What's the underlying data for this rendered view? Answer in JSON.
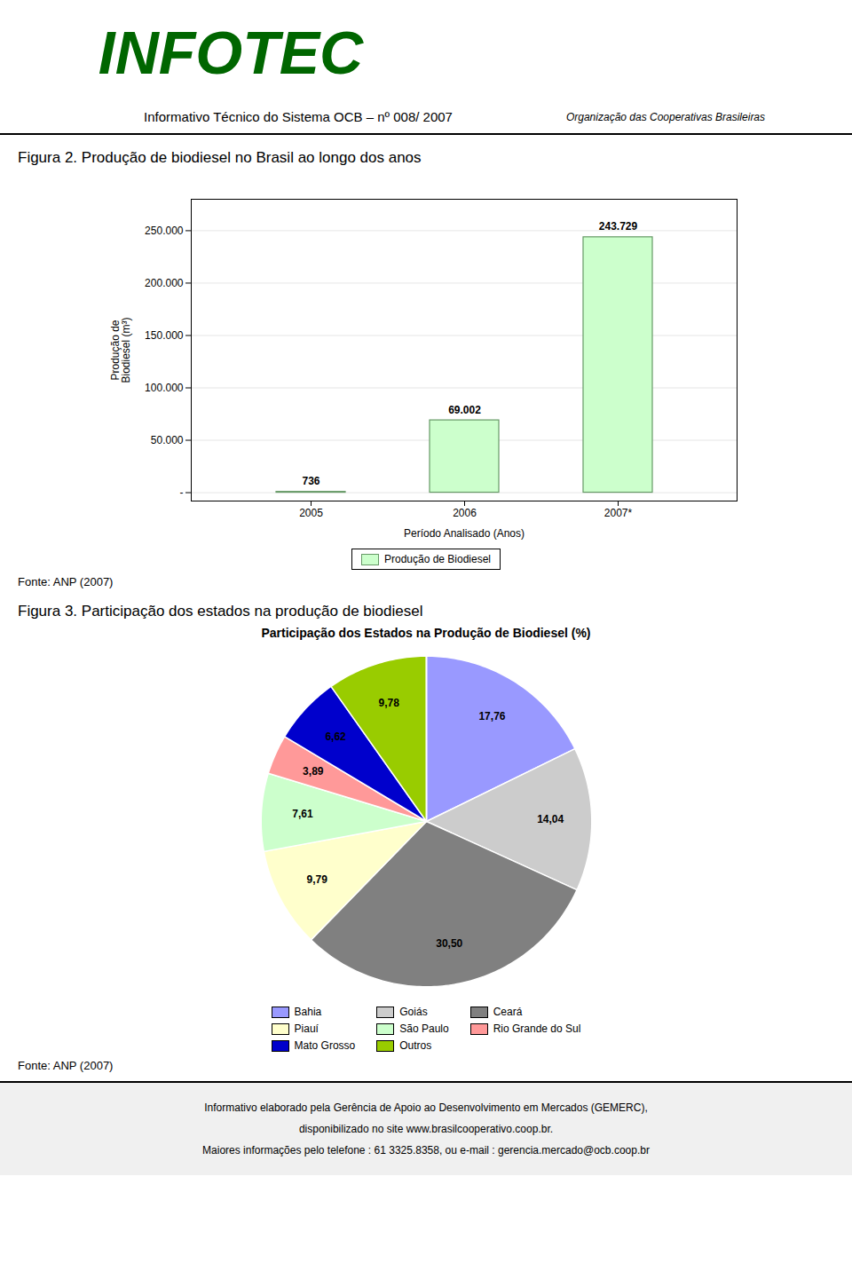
{
  "header": [
    "INFOTEC",
    "Informativo Técnico do Sistema OCB –  nº 008/ 2007",
    "Organização das Cooperativas Brasileiras"
  ],
  "chart_data": [
    {
      "type": "bar",
      "title": "Figura 2. Produção de biodiesel no Brasil ao longo dos anos",
      "xlabel": "Período Analisado (Anos)",
      "ylabel": "Produção de\nBiodiesel (m³)",
      "categories": [
        "2005",
        "2006",
        "2007*"
      ],
      "series": [
        {
          "name": "Produção de Biodiesel",
          "color": "#ccffcc",
          "values": [
            736,
            69002,
            243729
          ],
          "value_labels": [
            "736",
            "69.002",
            "243.729"
          ]
        }
      ],
      "ylim": [
        -8000,
        280000
      ],
      "yticks": [
        {
          "value": 0,
          "label": "-"
        },
        {
          "value": 50000,
          "label": "50.000"
        },
        {
          "value": 100000,
          "label": "100.000"
        },
        {
          "value": 150000,
          "label": "150.000"
        },
        {
          "value": 200000,
          "label": "200.000"
        },
        {
          "value": 250000,
          "label": "250.000"
        }
      ],
      "grid": true,
      "legend": "bottom",
      "data_labels": true,
      "caption": "Fonte: ANP (2007)"
    },
    {
      "type": "pie",
      "title": "Figura 3. Participação dos estados na produção de biodiesel",
      "subtitle": "Participação dos Estados na Produção de Biodiesel (%)",
      "categories": [
        "Bahia",
        "Goiás",
        "Ceará",
        "Piauí",
        "São Paulo",
        "Rio Grande do Sul",
        "Mato Grosso",
        "Outros",
        null
      ],
      "values": [
        17.76,
        14.04,
        30.5,
        9.79,
        7.61,
        3.89,
        6.62,
        9.78,
        0.01
      ],
      "value_labels": [
        "17,76",
        "14,04",
        "30,50",
        "9,79",
        "7,61",
        "3,89",
        "6,62",
        "9,78",
        null
      ],
      "colors": [
        "#9999ff",
        "#cccccc",
        "#808080",
        "#ffffcc",
        "#ccffcc",
        "#ff9999",
        "#0000cc",
        "#99cc00",
        "#ffffff"
      ],
      "data_labels": true,
      "legend": "bottom",
      "caption": "Fonte: ANP (2007)"
    }
  ],
  "footer": [
    "Informativo elaborado pela Gerência de Apoio ao Desenvolvimento em Mercados (GEMERC),",
    "disponibilizado no site www.brasilcooperativo.coop.br.",
    "Maiores informações pelo telefone : 61 3325.8358, ou e-mail : gerencia.mercado@ocb.coop.br"
  ]
}
